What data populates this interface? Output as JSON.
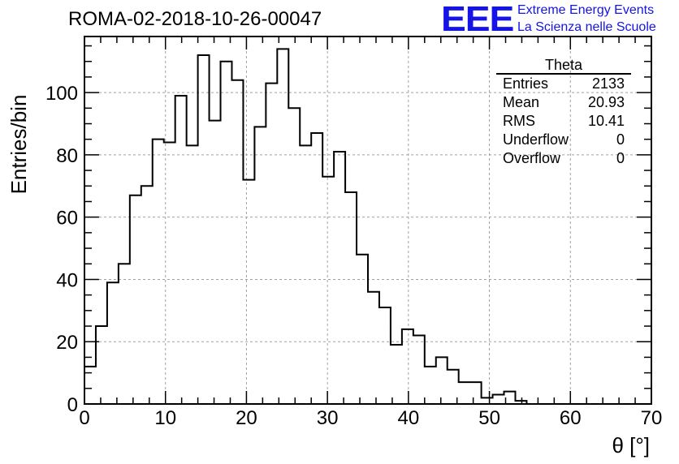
{
  "header": {
    "run_title": "ROMA-02-2018-10-26-00047",
    "logo": "EEE",
    "logo_line1": "Extreme Energy Events",
    "logo_line2": "La Scienza nelle Scuole"
  },
  "stats": {
    "title": "Theta",
    "rows": [
      {
        "label": "Entries",
        "value": "2133"
      },
      {
        "label": "Mean",
        "value": "20.93"
      },
      {
        "label": "RMS",
        "value": "10.41"
      },
      {
        "label": "Underflow",
        "value": "0"
      },
      {
        "label": "Overflow",
        "value": "0"
      }
    ]
  },
  "chart_data": {
    "type": "histogram",
    "title": "ROMA-02-2018-10-26-00047",
    "xlabel": "θ [°]",
    "ylabel": "Entries/bin",
    "xlim": [
      0,
      70
    ],
    "ylim": [
      0,
      118
    ],
    "bin_width": 1.4,
    "bin_edges_start": 0,
    "xticks": [
      0,
      10,
      20,
      30,
      40,
      50,
      60,
      70
    ],
    "yticks": [
      0,
      20,
      40,
      60,
      80,
      100
    ],
    "grid": true,
    "line_color": "#000000",
    "values": [
      12,
      25,
      39,
      45,
      67,
      70,
      85,
      84,
      99,
      83,
      112,
      91,
      110,
      104,
      72,
      89,
      103,
      114,
      95,
      83,
      87,
      73,
      81,
      68,
      48,
      36,
      31,
      19,
      24,
      22,
      12,
      15,
      11,
      7,
      7,
      2,
      3,
      4,
      1,
      0,
      0,
      0,
      0,
      0,
      0,
      0,
      0,
      0,
      0,
      0
    ]
  }
}
